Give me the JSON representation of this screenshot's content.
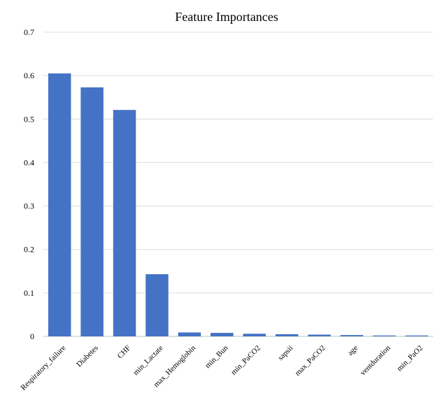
{
  "chart_data": {
    "type": "bar",
    "title": "Feature Importances",
    "xlabel": "",
    "ylabel": "",
    "categories": [
      "Respiratory_failure",
      "Diabetes",
      "CHF",
      "min_Lactate",
      "max_Hemoglobin",
      "min_Bun",
      "min_PaCO2",
      "sapsii",
      "max_PaCO2",
      "age",
      "ventduration",
      "min_PaO2"
    ],
    "values": [
      0.605,
      0.573,
      0.521,
      0.143,
      0.009,
      0.008,
      0.006,
      0.005,
      0.004,
      0.003,
      0.002,
      0.002
    ],
    "ylim": [
      0,
      0.7
    ],
    "yticks": [
      0,
      0.1,
      0.2,
      0.3,
      0.4,
      0.5,
      0.6,
      0.7
    ],
    "ytick_labels": [
      "0",
      "0.1",
      "0.2",
      "0.3",
      "0.4",
      "0.5",
      "0.6",
      "0.7"
    ],
    "grid": true,
    "legend": "none",
    "colors": {
      "bar": "#4472C4",
      "grid": "#dcdcdc",
      "axis": "#bfbfbf"
    }
  }
}
